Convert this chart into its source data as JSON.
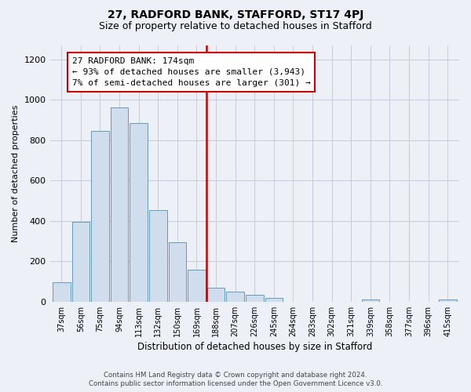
{
  "title": "27, RADFORD BANK, STAFFORD, ST17 4PJ",
  "subtitle": "Size of property relative to detached houses in Stafford",
  "xlabel": "Distribution of detached houses by size in Stafford",
  "ylabel": "Number of detached properties",
  "bar_color": "#cfdded",
  "bar_edge_color": "#6699bb",
  "categories": [
    "37sqm",
    "56sqm",
    "75sqm",
    "94sqm",
    "113sqm",
    "132sqm",
    "150sqm",
    "169sqm",
    "188sqm",
    "207sqm",
    "226sqm",
    "245sqm",
    "264sqm",
    "283sqm",
    "302sqm",
    "321sqm",
    "339sqm",
    "358sqm",
    "377sqm",
    "396sqm",
    "415sqm"
  ],
  "values": [
    95,
    395,
    845,
    960,
    885,
    455,
    295,
    160,
    70,
    50,
    33,
    20,
    0,
    0,
    0,
    0,
    10,
    0,
    0,
    0,
    10
  ],
  "ylim": [
    0,
    1270
  ],
  "yticks": [
    0,
    200,
    400,
    600,
    800,
    1000,
    1200
  ],
  "vline_x": 7.5,
  "vline_color": "#cc0000",
  "annotation_title": "27 RADFORD BANK: 174sqm",
  "annotation_line1": "← 93% of detached houses are smaller (3,943)",
  "annotation_line2": "7% of semi-detached houses are larger (301) →",
  "footer_line1": "Contains HM Land Registry data © Crown copyright and database right 2024.",
  "footer_line2": "Contains public sector information licensed under the Open Government Licence v3.0.",
  "background_color": "#eef0f8",
  "plot_bg_color": "#eef0f8",
  "grid_color": "#c8cad8"
}
